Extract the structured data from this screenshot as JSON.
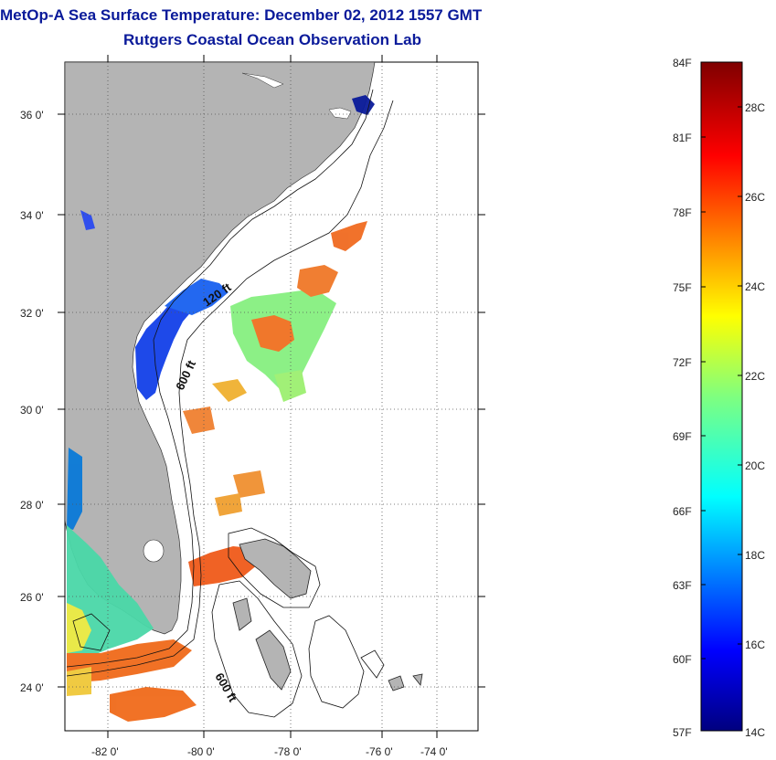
{
  "title": "MetOp-A Sea Surface Temperature:  December 02, 2012 1557 GMT",
  "subtitle": "Rutgers Coastal Ocean Observation Lab",
  "map": {
    "lon_range": [
      -83,
      -72
    ],
    "lat_range": [
      23,
      37
    ],
    "lat_ticks": [
      "36 0'",
      "34 0'",
      "32 0'",
      "30 0'",
      "28 0'",
      "26 0'",
      "24 0'"
    ],
    "lon_ticks": [
      "-82 0'",
      "-80 0'",
      "-78 0'",
      "-76 0'",
      "-74 0'"
    ],
    "contour_labels": [
      "120 ft",
      "600 ft",
      "600 ft"
    ],
    "land_color": "#b4b4b4"
  },
  "colorbar": {
    "fahrenheit_labels": [
      "84F",
      "81F",
      "78F",
      "75F",
      "72F",
      "69F",
      "66F",
      "63F",
      "60F",
      "57F"
    ],
    "celsius_labels": [
      "28C",
      "26C",
      "24C",
      "22C",
      "20C",
      "18C",
      "16C",
      "14C"
    ],
    "range_c": [
      14,
      29
    ],
    "colormap": "jet"
  }
}
